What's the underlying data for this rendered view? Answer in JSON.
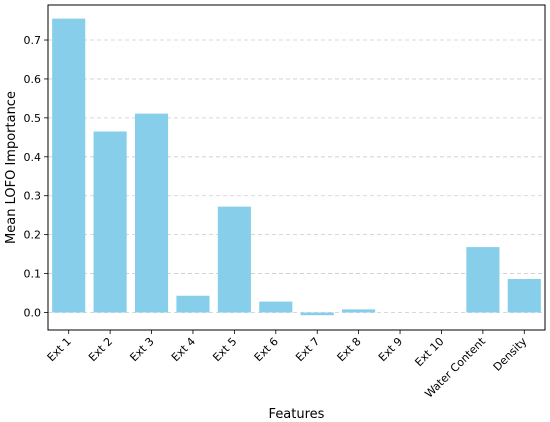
{
  "chart_data": {
    "type": "bar",
    "title": "",
    "xlabel": "Features",
    "ylabel": "Mean LOFO Importance",
    "categories": [
      "Ext 1",
      "Ext 2",
      "Ext 3",
      "Ext 4",
      "Ext 5",
      "Ext 6",
      "Ext 7",
      "Ext 8",
      "Ext 9",
      "Ext 10",
      "Water Content",
      "Density"
    ],
    "values": [
      0.755,
      0.465,
      0.511,
      0.043,
      0.272,
      0.028,
      -0.007,
      0.008,
      0.0,
      0.0,
      0.168,
      0.086
    ],
    "ylim": [
      -0.045,
      0.79
    ],
    "yticks": [
      "0.0",
      "0.1",
      "0.2",
      "0.3",
      "0.4",
      "0.5",
      "0.6",
      "0.7"
    ],
    "grid": "y-dashed",
    "legend": "none",
    "bar_color": "#87CEEB"
  }
}
